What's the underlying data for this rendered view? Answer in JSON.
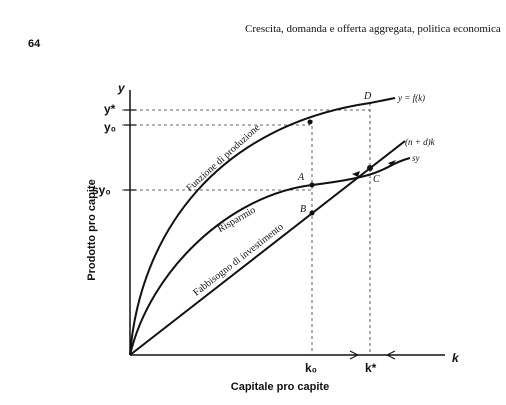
{
  "header": {
    "page_number": "64",
    "title": "Crescita, domanda e offerta aggregata, politica economica"
  },
  "diagram": {
    "y_axis_title": "Prodotto pro capite",
    "x_axis_title": "Capitale pro capite",
    "y_axis_symbol": "y",
    "x_axis_symbol": "k",
    "y_labels": [
      "y*",
      "y₀",
      "sy₀"
    ],
    "x_labels": [
      "k₀",
      "k*"
    ],
    "points": [
      "A",
      "B",
      "C",
      "D"
    ],
    "curve_labels": [
      "y = f(k)",
      "(n + d)k",
      "sy"
    ],
    "curve_names": [
      "Funzione di produzione",
      "Risparmio",
      "Fabbisogno di investimento"
    ]
  }
}
